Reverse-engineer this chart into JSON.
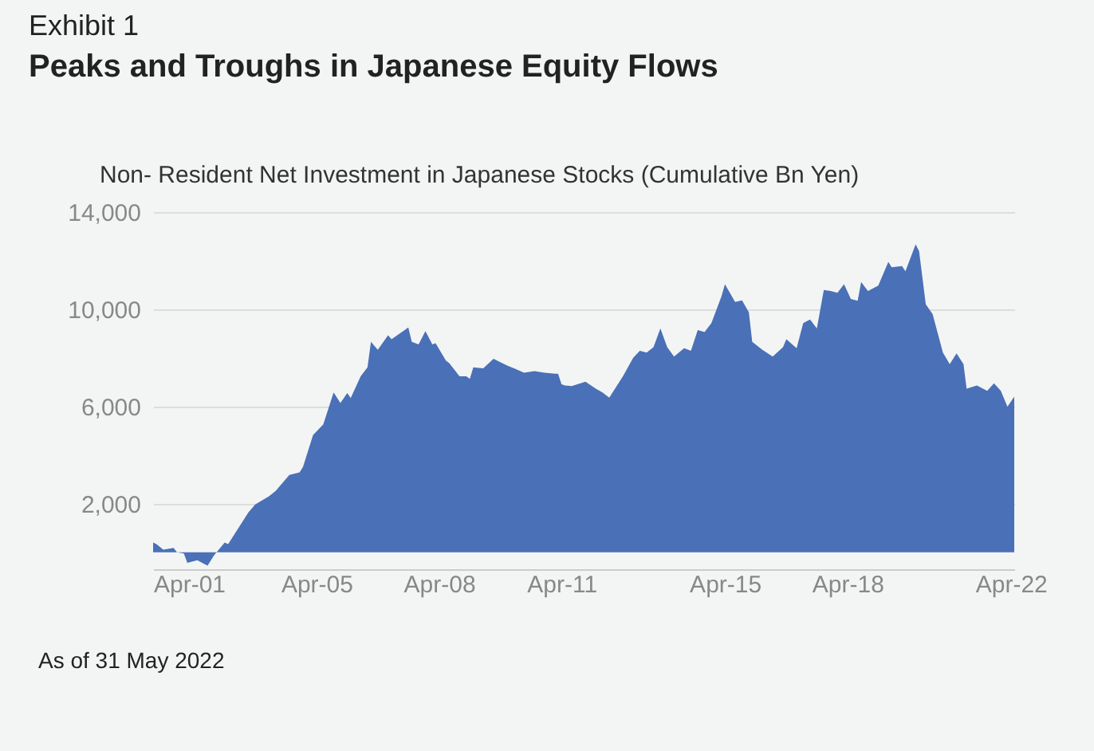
{
  "chart_data": {
    "type": "area",
    "title": "Exhibit 1",
    "subtitle": "Peaks and Troughs in Japanese Equity Flows",
    "ylabel": "Non- Resident Net Investment in Japanese Stocks (Cumulative Bn Yen)",
    "x": [
      "2001-04",
      "2001-05",
      "2001-07",
      "2001-10",
      "2001-11",
      "2002-01",
      "2002-02",
      "2002-05",
      "2002-08",
      "2002-10",
      "2003-01",
      "2003-02",
      "2003-08",
      "2003-10",
      "2004-02",
      "2004-04",
      "2004-08",
      "2004-11",
      "2004-12",
      "2005-03",
      "2005-06",
      "2005-09",
      "2005-11",
      "2006-01",
      "2006-02",
      "2006-05",
      "2006-07",
      "2006-08",
      "2006-10",
      "2007-01",
      "2007-02",
      "2007-07",
      "2007-08",
      "2007-10",
      "2007-12",
      "2008-02",
      "2008-03",
      "2008-06",
      "2008-07",
      "2008-10",
      "2008-12",
      "2009-01",
      "2009-02",
      "2009-05",
      "2009-08",
      "2009-09",
      "2009-12",
      "2010-02",
      "2010-05",
      "2010-08",
      "2010-11",
      "2011-02",
      "2011-03",
      "2011-04",
      "2011-05",
      "2011-07",
      "2011-11",
      "2012-02",
      "2012-04",
      "2012-06",
      "2012-10",
      "2013-01",
      "2013-03",
      "2013-05",
      "2013-07",
      "2013-09",
      "2013-11",
      "2014-01",
      "2014-04",
      "2014-06",
      "2014-08",
      "2014-10",
      "2014-12",
      "2015-03",
      "2015-04",
      "2015-07",
      "2015-09",
      "2015-11",
      "2015-12",
      "2016-03",
      "2016-06",
      "2016-09",
      "2016-10",
      "2017-01",
      "2017-03",
      "2017-05",
      "2017-07",
      "2017-09",
      "2017-11",
      "2018-01",
      "2018-03",
      "2018-05",
      "2018-07",
      "2018-08",
      "2018-10",
      "2019-01",
      "2019-04",
      "2019-05",
      "2019-08",
      "2019-09",
      "2019-12",
      "2020-01",
      "2020-03",
      "2020-05",
      "2020-08",
      "2020-10",
      "2020-12",
      "2021-02",
      "2021-03",
      "2021-06",
      "2021-09",
      "2021-11",
      "2022-01",
      "2022-03",
      "2022-05"
    ],
    "series": [
      {
        "color": "#4a70b7",
        "values": [
          400,
          330,
          100,
          180,
          0,
          -50,
          -440,
          -330,
          -550,
          -110,
          400,
          330,
          1640,
          1970,
          2300,
          2520,
          3180,
          3290,
          3510,
          4820,
          5260,
          6580,
          6140,
          6550,
          6350,
          7240,
          7610,
          8660,
          8330,
          8930,
          8770,
          9250,
          8660,
          8550,
          9100,
          8550,
          8600,
          7890,
          7780,
          7240,
          7240,
          7130,
          7610,
          7570,
          7960,
          7890,
          7680,
          7570,
          7390,
          7450,
          7390,
          7350,
          7350,
          6910,
          6860,
          6840,
          7020,
          6730,
          6580,
          6360,
          7240,
          8000,
          8290,
          8220,
          8440,
          9210,
          8440,
          8050,
          8400,
          8290,
          9140,
          9060,
          9430,
          10530,
          11030,
          10300,
          10370,
          9870,
          8660,
          8330,
          8050,
          8440,
          8770,
          8400,
          9430,
          9580,
          9210,
          10790,
          10750,
          10680,
          11030,
          10420,
          10350,
          11120,
          10750,
          10970,
          11950,
          11730,
          11780,
          11560,
          12670,
          12390,
          10200,
          9800,
          8220,
          7740,
          8180,
          7740,
          6730,
          6860,
          6640,
          6950,
          6640,
          5990,
          6400
        ]
      }
    ],
    "xlim": [
      "2001-04",
      "2022-05"
    ],
    "xticks": [
      {
        "value": "2001-04",
        "label": "Apr-01"
      },
      {
        "value": "2005-04",
        "label": "Apr-05"
      },
      {
        "value": "2008-04",
        "label": "Apr-08"
      },
      {
        "value": "2011-04",
        "label": "Apr-11"
      },
      {
        "value": "2015-04",
        "label": "Apr-15"
      },
      {
        "value": "2018-04",
        "label": "Apr-18"
      },
      {
        "value": "2022-04",
        "label": "Apr-22"
      }
    ],
    "ylim": [
      -700,
      14000
    ],
    "yticks": [
      {
        "value": 2000,
        "label": "2,000"
      },
      {
        "value": 6000,
        "label": "6,000"
      },
      {
        "value": 10000,
        "label": "10,000"
      },
      {
        "value": 14000,
        "label": "14,000"
      }
    ],
    "grid": "y",
    "legend": false,
    "annotations": [
      "As of 31 May 2022"
    ]
  }
}
